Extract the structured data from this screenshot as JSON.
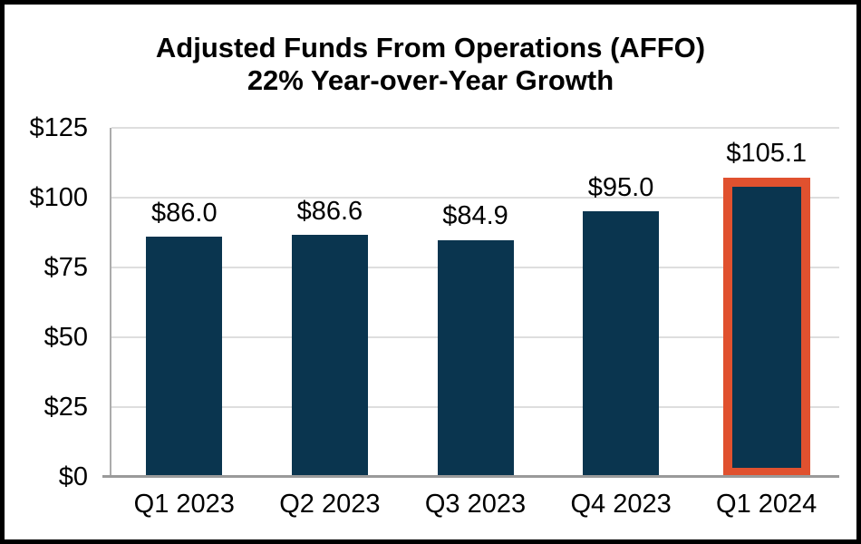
{
  "frame": {
    "background": "#FFFFFF",
    "border_color": "#000000"
  },
  "chart_data": {
    "type": "bar",
    "title": "Adjusted Funds From Operations (AFFO)",
    "subtitle": "22% Year-over-Year Growth",
    "categories": [
      "Q1 2023",
      "Q2 2023",
      "Q3 2023",
      "Q4 2023",
      "Q1 2024"
    ],
    "values": [
      86.0,
      86.6,
      84.9,
      95.0,
      105.1
    ],
    "data_labels": [
      "$86.0",
      "$86.6",
      "$84.9",
      "$95.0",
      "$105.1"
    ],
    "y_ticks": [
      {
        "label": "$0",
        "value": 0
      },
      {
        "label": "$25",
        "value": 25
      },
      {
        "label": "$50",
        "value": 50
      },
      {
        "label": "$75",
        "value": 75
      },
      {
        "label": "$100",
        "value": 100
      },
      {
        "label": "$125",
        "value": 125
      }
    ],
    "ylim": [
      0,
      125
    ],
    "grid": "horizontal",
    "legend_position": "none",
    "highlight_index": 4,
    "colors": {
      "bar": "#0A354F",
      "highlight_border": "#E0512F",
      "gridline": "#DEDEDE",
      "baseline": "#9A9A9A",
      "axis_line": "#ACACAC",
      "label_text": "#000000"
    }
  }
}
